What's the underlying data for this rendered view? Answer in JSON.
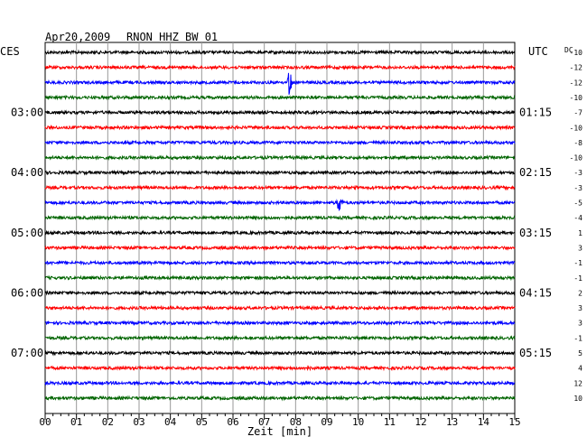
{
  "header": {
    "date": "Apr20,2009",
    "station": "RNON HHZ BW 01",
    "left_tz": "CES",
    "right_tz": "UTC",
    "dc_label": "DC"
  },
  "chart_data": {
    "type": "line",
    "title": "Apr20,2009 RNON HHZ BW 01",
    "xlabel": "Zeit [min]",
    "x_ticks": [
      "00",
      "01",
      "02",
      "03",
      "04",
      "05",
      "06",
      "07",
      "08",
      "09",
      "10",
      "11",
      "12",
      "13",
      "14",
      "15"
    ],
    "xlim": [
      0,
      15
    ],
    "trace_interval_min": 15,
    "trace_count": 24,
    "trace_colors": [
      "#000000",
      "#ff0000",
      "#0000ff",
      "#006400"
    ],
    "left_labels": [
      {
        "trace": 4,
        "text": "03:00"
      },
      {
        "trace": 8,
        "text": "04:00"
      },
      {
        "trace": 12,
        "text": "05:00"
      },
      {
        "trace": 16,
        "text": "06:00"
      },
      {
        "trace": 20,
        "text": "07:00"
      }
    ],
    "right_labels": [
      {
        "trace": 4,
        "text": "01:15"
      },
      {
        "trace": 8,
        "text": "02:15"
      },
      {
        "trace": 12,
        "text": "03:15"
      },
      {
        "trace": 16,
        "text": "04:15"
      },
      {
        "trace": 20,
        "text": "05:15"
      }
    ],
    "dc_offsets": [
      -10,
      -12,
      -12,
      -10,
      -7,
      -10,
      -8,
      -10,
      -3,
      -3,
      -5,
      -4,
      1,
      3,
      -1,
      -1,
      2,
      3,
      3,
      -1,
      5,
      4,
      12,
      10
    ],
    "events": [
      {
        "trace": 2,
        "minute": 7.8,
        "amplitude": 3.5
      },
      {
        "trace": 10,
        "minute": 9.4,
        "amplitude": 3.0
      },
      {
        "trace": 9,
        "minute": 9.9,
        "amplitude": 0.6
      },
      {
        "trace": 21,
        "minute": 8.4,
        "amplitude": 0.5
      }
    ]
  }
}
